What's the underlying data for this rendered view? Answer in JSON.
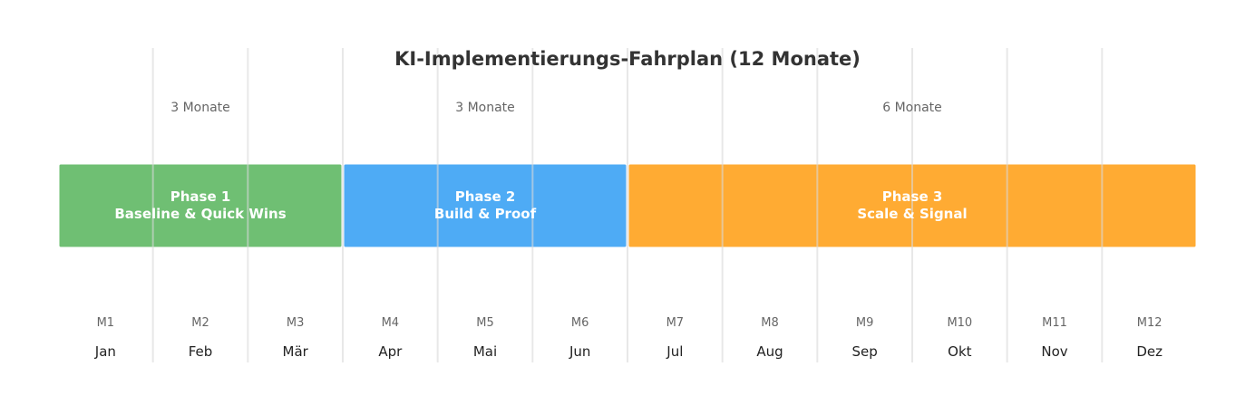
{
  "chart_data": {
    "type": "bar",
    "title": "KI-Implementierungs-Fahrplan (12 Monate)",
    "x": [
      "M1",
      "M2",
      "M3",
      "M4",
      "M5",
      "M6",
      "M7",
      "M8",
      "M9",
      "M10",
      "M11",
      "M12"
    ],
    "month_names": [
      "Jan",
      "Feb",
      "Mär",
      "Apr",
      "Mai",
      "Jun",
      "Jul",
      "Aug",
      "Sep",
      "Okt",
      "Nov",
      "Dez"
    ],
    "xlim": [
      0.5,
      12.5
    ],
    "grid": true,
    "phases": [
      {
        "label_line1": "Phase 1",
        "label_line2": "Baseline & Quick Wins",
        "duration_label": "3 Monate",
        "start_month": 1,
        "end_month": 3,
        "color": "#6fbf73"
      },
      {
        "label_line1": "Phase 2",
        "label_line2": "Build & Proof",
        "duration_label": "3 Monate",
        "start_month": 4,
        "end_month": 6,
        "color": "#4eabf5"
      },
      {
        "label_line1": "Phase 3",
        "label_line2": "Scale & Signal",
        "duration_label": "6 Monate",
        "start_month": 7,
        "end_month": 12,
        "color": "#ffab33"
      }
    ],
    "colors": {
      "title": "#333333",
      "label": "#666666",
      "month": "#222222",
      "grid": "#d9d9d9",
      "phase_text": "#ffffff"
    }
  }
}
